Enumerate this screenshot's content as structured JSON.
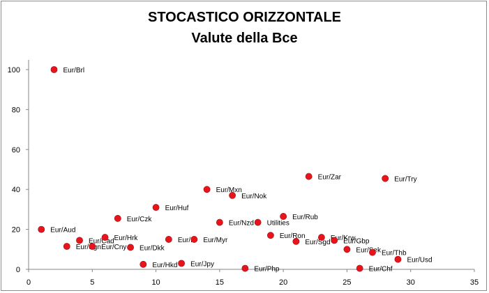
{
  "chart_data": {
    "type": "scatter",
    "title": "STOCASTICO ORIZZONTALE",
    "subtitle": "Valute della Bce",
    "xlim": [
      0,
      35
    ],
    "ylim": [
      0,
      100
    ],
    "x_ticks": [
      0,
      5,
      10,
      15,
      20,
      25,
      30,
      35
    ],
    "y_ticks": [
      0,
      20,
      40,
      60,
      80,
      100
    ],
    "grid": false,
    "legend": "none",
    "marker_color": "#e8141b",
    "points": [
      {
        "label": "Eur/Brl",
        "x": 2,
        "y": 100
      },
      {
        "label": "Eur/Aud",
        "x": 1,
        "y": 20
      },
      {
        "label": "Eur/Sgn",
        "x": 3,
        "y": 11.5
      },
      {
        "label": "Eur/Cad",
        "x": 4,
        "y": 14.5
      },
      {
        "label": "Eur/Cny",
        "x": 5,
        "y": 11.5
      },
      {
        "label": "Eur/Hrk",
        "x": 6,
        "y": 16
      },
      {
        "label": "Eur/Czk",
        "x": 7,
        "y": 25.5
      },
      {
        "label": "Eur/Dkk",
        "x": 8,
        "y": 11
      },
      {
        "label": "Eur/Hkd",
        "x": 9,
        "y": 2.5
      },
      {
        "label": "Eur/Huf",
        "x": 10,
        "y": 31
      },
      {
        "label": "Eur/Ir",
        "x": 11,
        "y": 15
      },
      {
        "label": "Eur/Jpy",
        "x": 12,
        "y": 3
      },
      {
        "label": "Eur/Myr",
        "x": 13,
        "y": 15
      },
      {
        "label": "Eur/Mxn",
        "x": 14,
        "y": 40
      },
      {
        "label": "Eur/Nzd",
        "x": 15,
        "y": 23.5
      },
      {
        "label": "Eur/Nok",
        "x": 16,
        "y": 37
      },
      {
        "label": "Eur/Php",
        "x": 17,
        "y": 0.5
      },
      {
        "label": "Utilities",
        "x": 18,
        "y": 23.5
      },
      {
        "label": "Eur/Ron",
        "x": 19,
        "y": 17
      },
      {
        "label": "Eur/Rub",
        "x": 20,
        "y": 26.5
      },
      {
        "label": "Eur/Sgd",
        "x": 21,
        "y": 14
      },
      {
        "label": "Eur/Zar",
        "x": 22,
        "y": 46.5
      },
      {
        "label": "Eur/Krw",
        "x": 23,
        "y": 16
      },
      {
        "label": "Eur/Gbp",
        "x": 24,
        "y": 14.5
      },
      {
        "label": "Eur/Sek",
        "x": 25,
        "y": 10
      },
      {
        "label": "Eur/Chf",
        "x": 26,
        "y": 0.5
      },
      {
        "label": "Eur/Thb",
        "x": 27,
        "y": 8.5
      },
      {
        "label": "Eur/Try",
        "x": 28,
        "y": 45.5
      },
      {
        "label": "Eur/Usd",
        "x": 29,
        "y": 5
      }
    ]
  }
}
